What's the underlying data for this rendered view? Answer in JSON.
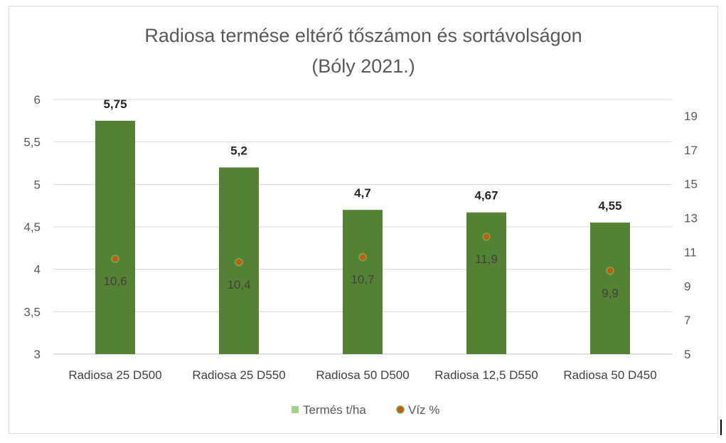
{
  "chart_data": {
    "type": "bar",
    "title_lines": [
      "Radiosa termése eltérő tőszámon és sortávolságon",
      "(Bóly 2021.)"
    ],
    "categories": [
      "Radiosa 25 D500",
      "Radiosa 25 D550",
      "Radiosa 50 D500",
      "Radiosa 12,5 D550",
      "Radiosa 50 D450"
    ],
    "series": [
      {
        "name": "Termés t/ha",
        "type": "bar",
        "axis": "left",
        "values": [
          5.75,
          5.2,
          4.7,
          4.67,
          4.55
        ],
        "labels": [
          "5,75",
          "5,2",
          "4,7",
          "4,67",
          "4,55"
        ],
        "color": "#548235",
        "legend_color": "#a9d18e"
      },
      {
        "name": "Víz %",
        "type": "scatter",
        "axis": "right",
        "values": [
          10.6,
          10.4,
          10.7,
          11.9,
          9.9
        ],
        "labels": [
          "10,6",
          "10,4",
          "10,7",
          "11,9",
          "9,9"
        ],
        "color": "#c55a11",
        "marker_border": "#70ad47"
      }
    ],
    "y_left": {
      "ylim": [
        3,
        6
      ],
      "ticks": [
        3,
        3.5,
        4,
        4.5,
        5,
        5.5,
        6
      ],
      "tick_labels": [
        "3",
        "3,5",
        "4",
        "4,5",
        "5",
        "5,5",
        "6"
      ]
    },
    "y_right": {
      "ylim": [
        5,
        20
      ],
      "ticks": [
        5,
        7,
        9,
        11,
        13,
        15,
        17,
        19
      ],
      "tick_labels": [
        "5",
        "7",
        "9",
        "11",
        "13",
        "15",
        "17",
        "19"
      ]
    },
    "grid": true,
    "legend_position": "bottom"
  }
}
